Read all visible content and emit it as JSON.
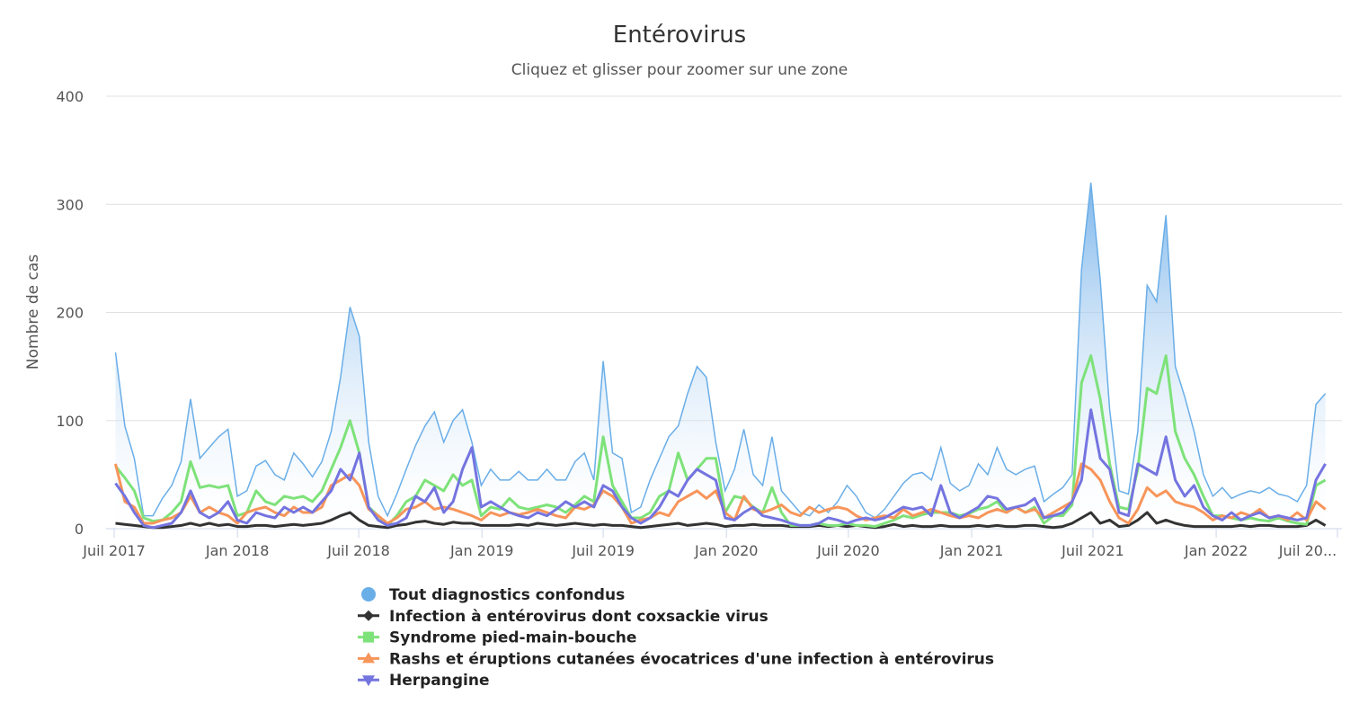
{
  "chart_data": {
    "type": "line",
    "title": "Entérovirus",
    "subtitle": "Cliquez et glisser pour zoomer sur une zone",
    "ylabel": "Nombre de cas",
    "xlabel": "",
    "ylim": [
      0,
      400
    ],
    "yticks": [
      "0",
      "100",
      "200",
      "300",
      "400"
    ],
    "xlim": [
      "2017-07-01",
      "2022-07-01"
    ],
    "xticks": [
      {
        "date": "2017-07-01",
        "label": "Juil 2017"
      },
      {
        "date": "2018-01-01",
        "label": "Jan 2018"
      },
      {
        "date": "2018-07-01",
        "label": "Juil 2018"
      },
      {
        "date": "2019-01-01",
        "label": "Jan 2019"
      },
      {
        "date": "2019-07-01",
        "label": "Juil 2019"
      },
      {
        "date": "2020-01-01",
        "label": "Jan 2020"
      },
      {
        "date": "2020-07-01",
        "label": "Juil 2020"
      },
      {
        "date": "2021-01-01",
        "label": "Jan 2021"
      },
      {
        "date": "2021-07-01",
        "label": "Juil 2021"
      },
      {
        "date": "2022-01-01",
        "label": "Jan 2022"
      },
      {
        "date": "2022-07-01",
        "label": "Juil 20..."
      }
    ],
    "grid": true,
    "legend_position": "bottom",
    "x": [
      "2017-07-03",
      "2017-07-17",
      "2017-07-31",
      "2017-08-14",
      "2017-08-28",
      "2017-09-11",
      "2017-09-25",
      "2017-10-09",
      "2017-10-23",
      "2017-11-06",
      "2017-11-20",
      "2017-12-04",
      "2017-12-18",
      "2018-01-01",
      "2018-01-15",
      "2018-01-29",
      "2018-02-12",
      "2018-02-26",
      "2018-03-12",
      "2018-03-26",
      "2018-04-09",
      "2018-04-23",
      "2018-05-07",
      "2018-05-21",
      "2018-06-04",
      "2018-06-18",
      "2018-07-02",
      "2018-07-16",
      "2018-07-30",
      "2018-08-13",
      "2018-08-27",
      "2018-09-10",
      "2018-09-24",
      "2018-10-08",
      "2018-10-22",
      "2018-11-05",
      "2018-11-19",
      "2018-12-03",
      "2018-12-17",
      "2018-12-31",
      "2019-01-14",
      "2019-01-28",
      "2019-02-11",
      "2019-02-25",
      "2019-03-11",
      "2019-03-25",
      "2019-04-08",
      "2019-04-22",
      "2019-05-06",
      "2019-05-20",
      "2019-06-03",
      "2019-06-17",
      "2019-07-01",
      "2019-07-15",
      "2019-07-29",
      "2019-08-12",
      "2019-08-26",
      "2019-09-09",
      "2019-09-23",
      "2019-10-07",
      "2019-10-21",
      "2019-11-04",
      "2019-11-18",
      "2019-12-02",
      "2019-12-16",
      "2019-12-30",
      "2020-01-13",
      "2020-01-27",
      "2020-02-10",
      "2020-02-24",
      "2020-03-09",
      "2020-03-23",
      "2020-04-06",
      "2020-04-20",
      "2020-05-04",
      "2020-05-18",
      "2020-06-01",
      "2020-06-15",
      "2020-06-29",
      "2020-07-13",
      "2020-07-27",
      "2020-08-10",
      "2020-08-24",
      "2020-09-07",
      "2020-09-21",
      "2020-10-05",
      "2020-10-19",
      "2020-11-02",
      "2020-11-16",
      "2020-11-30",
      "2020-12-14",
      "2020-12-28",
      "2021-01-11",
      "2021-01-25",
      "2021-02-08",
      "2021-02-22",
      "2021-03-08",
      "2021-03-22",
      "2021-04-05",
      "2021-04-19",
      "2021-05-03",
      "2021-05-17",
      "2021-05-31",
      "2021-06-14",
      "2021-06-28",
      "2021-07-12",
      "2021-07-26",
      "2021-08-09",
      "2021-08-23",
      "2021-09-06",
      "2021-09-20",
      "2021-10-04",
      "2021-10-18",
      "2021-11-01",
      "2021-11-15",
      "2021-11-29",
      "2021-12-13",
      "2021-12-27",
      "2022-01-10",
      "2022-01-24",
      "2022-02-07",
      "2022-02-21",
      "2022-03-07",
      "2022-03-21",
      "2022-04-04",
      "2022-04-18",
      "2022-05-02",
      "2022-05-16",
      "2022-05-30",
      "2022-06-13"
    ],
    "series": [
      {
        "name": "Tout diagnostics confondus",
        "color": "#6aaee8",
        "type": "area",
        "marker": "circle",
        "values": [
          163,
          95,
          65,
          12,
          12,
          28,
          40,
          62,
          120,
          65,
          75,
          85,
          92,
          30,
          35,
          58,
          63,
          50,
          45,
          70,
          60,
          48,
          62,
          90,
          140,
          205,
          178,
          80,
          30,
          12,
          32,
          55,
          77,
          95,
          108,
          80,
          100,
          110,
          80,
          40,
          55,
          45,
          45,
          53,
          45,
          45,
          55,
          45,
          45,
          62,
          70,
          45,
          155,
          70,
          65,
          15,
          20,
          45,
          65,
          85,
          95,
          125,
          150,
          140,
          80,
          35,
          55,
          92,
          50,
          40,
          85,
          35,
          25,
          15,
          12,
          22,
          15,
          25,
          40,
          30,
          15,
          10,
          18,
          30,
          42,
          50,
          52,
          45,
          75,
          42,
          35,
          40,
          60,
          50,
          75,
          55,
          50,
          55,
          58,
          25,
          32,
          38,
          50,
          240,
          320,
          230,
          110,
          35,
          32,
          90,
          225,
          210,
          290,
          150,
          122,
          90,
          50,
          30,
          38,
          28,
          32,
          35,
          33,
          38,
          32,
          30,
          25,
          40,
          115,
          125
        ]
      },
      {
        "name": "Infection à entérovirus dont coxsackie virus",
        "color": "#333333",
        "type": "line",
        "marker": "diamond",
        "values": [
          5,
          4,
          3,
          2,
          1,
          1,
          2,
          3,
          5,
          3,
          5,
          3,
          4,
          2,
          2,
          3,
          3,
          2,
          3,
          4,
          3,
          4,
          5,
          8,
          12,
          15,
          8,
          3,
          2,
          1,
          3,
          4,
          6,
          7,
          5,
          4,
          6,
          5,
          5,
          3,
          3,
          3,
          3,
          4,
          3,
          5,
          4,
          3,
          4,
          5,
          4,
          3,
          4,
          3,
          3,
          2,
          1,
          2,
          3,
          4,
          5,
          3,
          4,
          5,
          4,
          2,
          3,
          3,
          4,
          3,
          3,
          3,
          2,
          2,
          2,
          3,
          2,
          3,
          2,
          3,
          2,
          1,
          2,
          4,
          2,
          3,
          2,
          2,
          3,
          2,
          2,
          2,
          3,
          2,
          3,
          2,
          2,
          3,
          3,
          2,
          1,
          2,
          5,
          10,
          15,
          5,
          8,
          2,
          3,
          8,
          15,
          5,
          8,
          5,
          3,
          2,
          2,
          2,
          2,
          2,
          3,
          2,
          3,
          3,
          2,
          2,
          2,
          3,
          8,
          3
        ]
      },
      {
        "name": "Syndrome pied-main-bouche",
        "color": "#7ee27a",
        "type": "line",
        "marker": "square",
        "values": [
          58,
          47,
          35,
          10,
          7,
          8,
          15,
          25,
          62,
          38,
          40,
          38,
          40,
          12,
          15,
          35,
          25,
          22,
          30,
          28,
          30,
          25,
          35,
          55,
          75,
          100,
          70,
          20,
          12,
          3,
          12,
          25,
          30,
          45,
          40,
          35,
          50,
          40,
          45,
          12,
          20,
          18,
          28,
          20,
          18,
          20,
          22,
          20,
          15,
          22,
          30,
          25,
          85,
          40,
          25,
          10,
          10,
          15,
          30,
          35,
          70,
          45,
          55,
          65,
          65,
          15,
          30,
          28,
          20,
          15,
          38,
          15,
          3,
          3,
          3,
          5,
          3,
          3,
          5,
          3,
          3,
          2,
          5,
          8,
          12,
          10,
          13,
          15,
          15,
          15,
          12,
          14,
          18,
          20,
          25,
          15,
          20,
          15,
          20,
          5,
          12,
          12,
          22,
          135,
          160,
          120,
          60,
          20,
          18,
          55,
          130,
          125,
          160,
          90,
          65,
          50,
          30,
          12,
          12,
          10,
          8,
          10,
          8,
          7,
          10,
          7,
          5,
          4,
          40,
          45
        ]
      },
      {
        "name": "Rashs et éruptions cutanées évocatrices d'une infection à entérovirus",
        "color": "#f7955a",
        "type": "line",
        "marker": "triangle",
        "values": [
          60,
          25,
          20,
          5,
          5,
          8,
          10,
          15,
          30,
          15,
          20,
          15,
          12,
          5,
          15,
          18,
          20,
          15,
          12,
          20,
          15,
          15,
          20,
          40,
          45,
          50,
          40,
          18,
          12,
          5,
          10,
          18,
          20,
          25,
          18,
          20,
          18,
          15,
          12,
          8,
          15,
          12,
          15,
          13,
          15,
          18,
          15,
          12,
          10,
          20,
          18,
          22,
          35,
          30,
          20,
          5,
          8,
          10,
          15,
          12,
          25,
          30,
          35,
          28,
          35,
          15,
          8,
          30,
          18,
          15,
          18,
          22,
          15,
          12,
          20,
          15,
          18,
          20,
          18,
          12,
          8,
          10,
          12,
          10,
          18,
          12,
          15,
          18,
          15,
          12,
          10,
          12,
          10,
          15,
          18,
          15,
          20,
          15,
          18,
          10,
          15,
          20,
          25,
          60,
          55,
          45,
          25,
          10,
          5,
          18,
          38,
          30,
          35,
          25,
          22,
          20,
          15,
          8,
          12,
          10,
          15,
          12,
          18,
          10,
          12,
          8,
          15,
          8,
          25,
          18
        ]
      },
      {
        "name": "Herpangine",
        "color": "#7474e0",
        "type": "line",
        "marker": "triangle-down",
        "values": [
          42,
          30,
          15,
          3,
          1,
          3,
          5,
          15,
          35,
          15,
          10,
          15,
          25,
          8,
          5,
          15,
          12,
          10,
          20,
          15,
          20,
          15,
          25,
          35,
          55,
          45,
          70,
          20,
          8,
          3,
          5,
          10,
          30,
          25,
          38,
          15,
          25,
          55,
          75,
          20,
          25,
          20,
          15,
          12,
          10,
          15,
          12,
          18,
          25,
          20,
          25,
          20,
          40,
          35,
          20,
          10,
          5,
          10,
          20,
          35,
          30,
          45,
          55,
          50,
          45,
          10,
          8,
          15,
          20,
          12,
          10,
          8,
          5,
          3,
          3,
          5,
          10,
          8,
          5,
          8,
          10,
          8,
          10,
          15,
          20,
          18,
          20,
          12,
          40,
          15,
          10,
          15,
          20,
          30,
          28,
          18,
          20,
          22,
          28,
          10,
          12,
          15,
          25,
          45,
          110,
          65,
          55,
          15,
          12,
          60,
          55,
          50,
          85,
          45,
          30,
          40,
          20,
          12,
          8,
          15,
          8,
          12,
          15,
          10,
          12,
          10,
          8,
          10,
          45,
          60
        ]
      }
    ]
  }
}
